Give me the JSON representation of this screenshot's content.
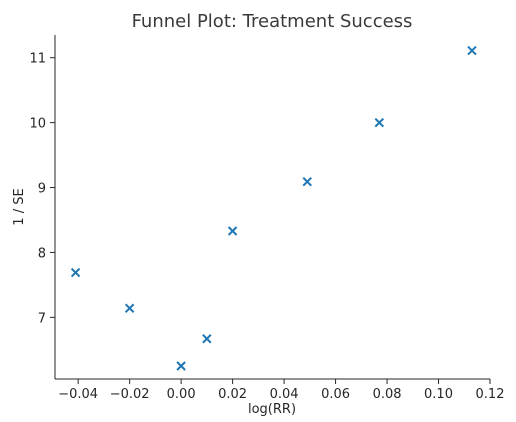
{
  "chart_data": {
    "type": "scatter",
    "title": "Funnel Plot: Treatment Success",
    "xlabel": "log(RR)",
    "ylabel": "1 / SE",
    "xlim": [
      -0.049,
      0.12
    ],
    "ylim": [
      6.05,
      11.35
    ],
    "xticks": [
      -0.04,
      -0.02,
      0.0,
      0.02,
      0.04,
      0.06,
      0.08,
      0.1,
      0.12
    ],
    "xtick_labels": [
      "−0.04",
      "−0.02",
      "0.00",
      "0.02",
      "0.04",
      "0.06",
      "0.08",
      "0.10",
      "0.12"
    ],
    "yticks": [
      7,
      8,
      9,
      10,
      11
    ],
    "ytick_labels": [
      "7",
      "8",
      "9",
      "10",
      "11"
    ],
    "grid": false,
    "marker": "x",
    "color": "#1f77b4",
    "series": [
      {
        "x": [
          -0.041,
          -0.02,
          0.0,
          0.01,
          0.02,
          0.049,
          0.077,
          0.113
        ],
        "y": [
          7.69,
          7.14,
          6.25,
          6.67,
          8.33,
          9.09,
          10.0,
          11.11
        ]
      }
    ]
  }
}
